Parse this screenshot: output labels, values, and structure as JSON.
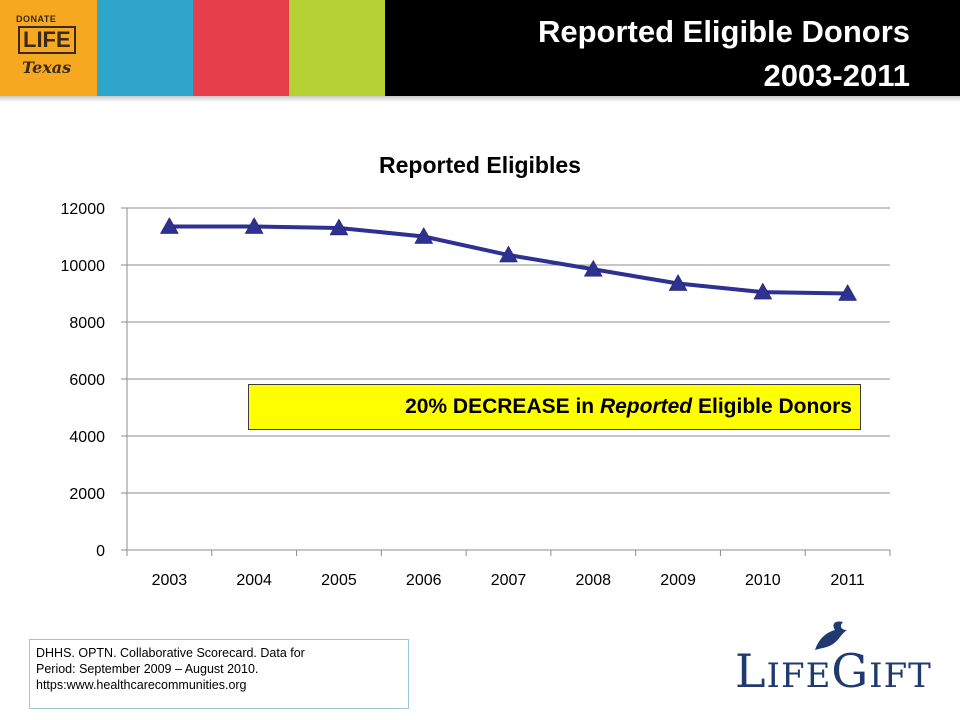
{
  "header": {
    "title_line1": "Reported Eligible Donors",
    "title_line2": "2003-2011",
    "logo": {
      "top": "DONATE",
      "middle": "LIFE",
      "bottom": "Texas"
    },
    "stripe_colors": [
      "#f7a821",
      "#30a5cc",
      "#e63e4a",
      "#b4d233"
    ]
  },
  "chart_data": {
    "type": "line",
    "title": "Reported Eligibles",
    "xlabel": "",
    "ylabel": "",
    "categories": [
      "2003",
      "2004",
      "2005",
      "2006",
      "2007",
      "2008",
      "2009",
      "2010",
      "2011"
    ],
    "series": [
      {
        "values": [
          11350,
          11350,
          11300,
          11000,
          10350,
          9850,
          9350,
          9050,
          9000
        ],
        "color": "#2e3192",
        "marker": "triangle"
      }
    ],
    "ylim": [
      0,
      12000
    ],
    "yticks": [
      0,
      2000,
      4000,
      6000,
      8000,
      10000,
      12000
    ],
    "grid": "horizontal",
    "legend": "none"
  },
  "annotation": {
    "prefix": "20% DECREASE in ",
    "emphasis": "Reported",
    "suffix": " Eligible Donors",
    "background": "#ffff00"
  },
  "source": {
    "line1": "DHHS.  OPTN.  Collaborative Scorecard.  Data for",
    "line2": "Period:  September 2009 –  August 2010.",
    "line3": "https:www.healthcarecommunities.org"
  },
  "footer_logo": {
    "text_parts": [
      "L",
      "IFE",
      "G",
      "IFT"
    ]
  }
}
